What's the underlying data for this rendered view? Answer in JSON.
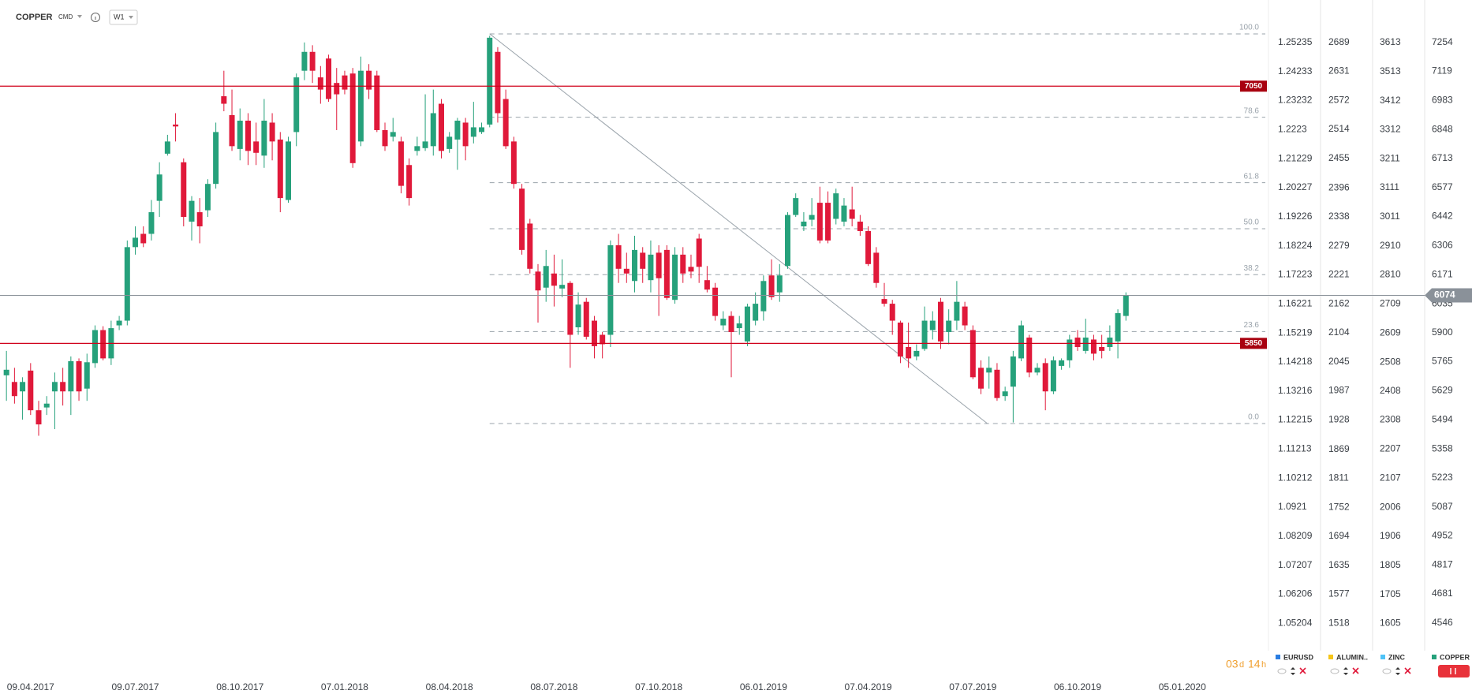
{
  "chart_data": {
    "type": "candlestick",
    "symbol": "COPPER",
    "exchange": "CMD",
    "interval": "W1",
    "up_color": "#26a17b",
    "down_color": "#e0193a",
    "ylim": [
      4328,
      7452
    ],
    "yticks": [
      7254,
      7119,
      6983,
      6848,
      6713,
      6577,
      6442,
      6306,
      6171,
      6035,
      5900,
      5765,
      5629,
      5494,
      5358,
      5223,
      5087,
      4952,
      4817,
      4681,
      4546
    ],
    "xlim": [
      -0.8,
      156.7
    ],
    "xticks": [
      {
        "value": 3,
        "label": "09.04.2017"
      },
      {
        "value": 16,
        "label": "09.07.2017"
      },
      {
        "value": 29,
        "label": "08.10.2017"
      },
      {
        "value": 42,
        "label": "07.01.2018"
      },
      {
        "value": 55,
        "label": "08.04.2018"
      },
      {
        "value": 68,
        "label": "08.07.2018"
      },
      {
        "value": 81,
        "label": "07.10.2018"
      },
      {
        "value": 94,
        "label": "06.01.2019"
      },
      {
        "value": 107,
        "label": "07.04.2019"
      },
      {
        "value": 120,
        "label": "07.07.2019"
      },
      {
        "value": 133,
        "label": "06.10.2019"
      },
      {
        "value": 146,
        "label": "05.01.2020"
      }
    ],
    "ohlc": [
      [
        5701,
        5815,
        5582,
        5727
      ],
      [
        5670,
        5736,
        5569,
        5604
      ],
      [
        5626,
        5692,
        5494,
        5670
      ],
      [
        5723,
        5758,
        5516,
        5538
      ],
      [
        5538,
        5582,
        5419,
        5472
      ],
      [
        5551,
        5604,
        5516,
        5569
      ],
      [
        5626,
        5714,
        5450,
        5670
      ],
      [
        5670,
        5736,
        5560,
        5626
      ],
      [
        5626,
        5789,
        5516,
        5767
      ],
      [
        5767,
        5780,
        5582,
        5626
      ],
      [
        5639,
        5802,
        5582,
        5762
      ],
      [
        5758,
        5934,
        5736,
        5912
      ],
      [
        5912,
        5930,
        5771,
        5780
      ],
      [
        5780,
        5956,
        5749,
        5921
      ],
      [
        5934,
        5978,
        5912,
        5956
      ],
      [
        5956,
        6330,
        5934,
        6299
      ],
      [
        6299,
        6396,
        6264,
        6343
      ],
      [
        6361,
        6396,
        6299,
        6317
      ],
      [
        6361,
        6519,
        6330,
        6462
      ],
      [
        6515,
        6695,
        6440,
        6638
      ],
      [
        6735,
        6823,
        6726,
        6792
      ],
      [
        6871,
        6924,
        6792,
        6862
      ],
      [
        6695,
        6713,
        6396,
        6440
      ],
      [
        6418,
        6537,
        6330,
        6515
      ],
      [
        6462,
        6528,
        6317,
        6396
      ],
      [
        6471,
        6616,
        6440,
        6594
      ],
      [
        6594,
        6880,
        6572,
        6836
      ],
      [
        7003,
        7122,
        6933,
        6968
      ],
      [
        6915,
        7034,
        6748,
        6770
      ],
      [
        6757,
        6946,
        6704,
        6889
      ],
      [
        6889,
        6924,
        6682,
        6748
      ],
      [
        6792,
        6880,
        6682,
        6739
      ],
      [
        6726,
        6990,
        6669,
        6889
      ],
      [
        6880,
        6924,
        6704,
        6792
      ],
      [
        6801,
        6836,
        6462,
        6528
      ],
      [
        6519,
        6814,
        6506,
        6792
      ],
      [
        6836,
        7109,
        6770,
        7091
      ],
      [
        7122,
        7254,
        7078,
        7210
      ],
      [
        7210,
        7241,
        7065,
        7122
      ],
      [
        7091,
        7144,
        6968,
        7034
      ],
      [
        7179,
        7197,
        6977,
        6990
      ],
      [
        7065,
        7135,
        6845,
        7012
      ],
      [
        7100,
        7122,
        7012,
        7034
      ],
      [
        7109,
        7135,
        6669,
        6691
      ],
      [
        6792,
        7188,
        6770,
        7122
      ],
      [
        7122,
        7153,
        6990,
        7034
      ],
      [
        7100,
        7122,
        6836,
        6845
      ],
      [
        6845,
        6880,
        6748,
        6770
      ],
      [
        6814,
        6902,
        6792,
        6836
      ],
      [
        6792,
        6814,
        6550,
        6585
      ],
      [
        6682,
        6713,
        6493,
        6528
      ],
      [
        6748,
        6814,
        6726,
        6770
      ],
      [
        6761,
        7012,
        6748,
        6792
      ],
      [
        6770,
        7034,
        6726,
        6924
      ],
      [
        6968,
        6990,
        6713,
        6748
      ],
      [
        6757,
        6836,
        6739,
        6814
      ],
      [
        6801,
        6902,
        6660,
        6889
      ],
      [
        6880,
        6902,
        6704,
        6770
      ],
      [
        6814,
        6977,
        6783,
        6858
      ],
      [
        6836,
        6880,
        6827,
        6858
      ],
      [
        6871,
        7285,
        6858,
        7276
      ],
      [
        7210,
        7232,
        6880,
        6924
      ],
      [
        6990,
        7034,
        6757,
        6770
      ],
      [
        6792,
        6814,
        6572,
        6594
      ],
      [
        6572,
        6594,
        6264,
        6286
      ],
      [
        6409,
        6431,
        6176,
        6198
      ],
      [
        6185,
        6220,
        5947,
        6097
      ],
      [
        6110,
        6286,
        6044,
        6211
      ],
      [
        6176,
        6264,
        6022,
        6119
      ],
      [
        6106,
        6242,
        6066,
        6123
      ],
      [
        6132,
        6141,
        5736,
        5890
      ],
      [
        5925,
        6088,
        5890,
        6031
      ],
      [
        6044,
        6062,
        5868,
        5881
      ],
      [
        5956,
        5978,
        5780,
        5837
      ],
      [
        5890,
        5903,
        5780,
        5846
      ],
      [
        5890,
        6330,
        5833,
        6308
      ],
      [
        6308,
        6361,
        6132,
        6198
      ],
      [
        6198,
        6273,
        6132,
        6176
      ],
      [
        6141,
        6352,
        6088,
        6286
      ],
      [
        6273,
        6299,
        6132,
        6198
      ],
      [
        6145,
        6330,
        6088,
        6264
      ],
      [
        6273,
        6308,
        5978,
        6154
      ],
      [
        6286,
        6308,
        6053,
        6062
      ],
      [
        6053,
        6299,
        6035,
        6264
      ],
      [
        6264,
        6299,
        6132,
        6176
      ],
      [
        6207,
        6264,
        6154,
        6185
      ],
      [
        6339,
        6361,
        6132,
        6207
      ],
      [
        6145,
        6211,
        6088,
        6101
      ],
      [
        6110,
        6132,
        5956,
        5978
      ],
      [
        5934,
        6000,
        5912,
        5965
      ],
      [
        5978,
        6000,
        5692,
        5903
      ],
      [
        5921,
        5978,
        5890,
        5943
      ],
      [
        5859,
        6035,
        5837,
        6022
      ],
      [
        5956,
        6088,
        5934,
        6035
      ],
      [
        6000,
        6167,
        5956,
        6141
      ],
      [
        6167,
        6242,
        6053,
        6066
      ],
      [
        6088,
        6220,
        6044,
        6167
      ],
      [
        6211,
        6462,
        6198,
        6449
      ],
      [
        6449,
        6550,
        6440,
        6528
      ],
      [
        6396,
        6462,
        6374,
        6418
      ],
      [
        6427,
        6528,
        6396,
        6449
      ],
      [
        6506,
        6581,
        6317,
        6330
      ],
      [
        6506,
        6559,
        6317,
        6330
      ],
      [
        6431,
        6572,
        6405,
        6550
      ],
      [
        6418,
        6528,
        6396,
        6493
      ],
      [
        6475,
        6581,
        6396,
        6431
      ],
      [
        6418,
        6449,
        6352,
        6374
      ],
      [
        6374,
        6396,
        6211,
        6220
      ],
      [
        6273,
        6299,
        6110,
        6132
      ],
      [
        6057,
        6132,
        6022,
        6035
      ],
      [
        6035,
        6053,
        5890,
        5956
      ],
      [
        5947,
        5956,
        5758,
        5789
      ],
      [
        5833,
        5947,
        5736,
        5780
      ],
      [
        5789,
        5846,
        5771,
        5815
      ],
      [
        5824,
        6022,
        5815,
        5956
      ],
      [
        5912,
        6000,
        5868,
        5956
      ],
      [
        6044,
        6062,
        5824,
        5859
      ],
      [
        5903,
        6009,
        5846,
        5956
      ],
      [
        5956,
        6141,
        5912,
        6044
      ],
      [
        6022,
        6044,
        5912,
        5934
      ],
      [
        5912,
        5934,
        5683,
        5692
      ],
      [
        5736,
        5771,
        5613,
        5639
      ],
      [
        5714,
        5789,
        5639,
        5736
      ],
      [
        5727,
        5758,
        5582,
        5595
      ],
      [
        5604,
        5648,
        5582,
        5626
      ],
      [
        5648,
        5815,
        5481,
        5789
      ],
      [
        5780,
        5956,
        5767,
        5934
      ],
      [
        5877,
        5890,
        5692,
        5714
      ],
      [
        5714,
        5758,
        5701,
        5736
      ],
      [
        5758,
        5780,
        5538,
        5626
      ],
      [
        5626,
        5789,
        5613,
        5771
      ],
      [
        5745,
        5780,
        5727,
        5771
      ],
      [
        5771,
        5890,
        5736,
        5868
      ],
      [
        5877,
        5912,
        5815,
        5833
      ],
      [
        5815,
        5965,
        5802,
        5877
      ],
      [
        5868,
        5890,
        5771,
        5802
      ],
      [
        5833,
        5890,
        5780,
        5815
      ],
      [
        5833,
        5934,
        5815,
        5877
      ],
      [
        5859,
        6009,
        5780,
        5991
      ],
      [
        5978,
        6088,
        5956,
        6074
      ]
    ],
    "levels": [
      {
        "value": 7050,
        "color": "#d0021b"
      },
      {
        "value": 5850,
        "color": "#d0021b"
      }
    ],
    "fibonacci": {
      "high": 7294,
      "low": 5476,
      "start": 60,
      "levels": [
        {
          "value": 100,
          "label": "100.0"
        },
        78.6,
        61.8,
        {
          "value": 50,
          "label": "50.0"
        },
        38.2,
        23.6,
        {
          "value": 0,
          "label": "0.0"
        }
      ]
    },
    "trendline": {
      "x": [
        60,
        121.8
      ],
      "y": [
        7294,
        5476
      ]
    },
    "scales": [
      {
        "name": "EURUSD",
        "color": "#2a7de1",
        "ylim": [
          1.03609,
          1.26698
        ],
        "ticks": [
          1.25235,
          1.24233,
          1.23232,
          1.2223,
          {
            "value": 1.21229,
            "label": "1.21229"
          },
          1.20227,
          1.19226,
          1.18224,
          1.17223,
          1.16221,
          1.15219,
          1.14218,
          1.13216,
          1.12215,
          1.11213,
          1.10212,
          1.0921,
          1.08209,
          1.07207,
          1.06206,
          1.05204
        ]
      },
      {
        "name": "ALUMIN..",
        "color": "#f5c518",
        "ylim": [
          1425,
          2774.5
        ],
        "ticks": [
          2689,
          2631,
          2572,
          2514,
          2455,
          2396,
          2338,
          2279,
          2221,
          2162,
          2104,
          2045,
          1987,
          1928,
          1869,
          1811,
          1752,
          1694,
          1635,
          1577,
          1518
        ]
      },
      {
        "name": "ZINC",
        "color": "#4fc3f7",
        "ylim": [
          1445,
          3760
        ],
        "ticks": [
          3613,
          3513,
          3412,
          3312,
          3211,
          3111,
          3011,
          2910,
          2810,
          2709,
          2609,
          2508,
          2408,
          2308,
          2207,
          2107,
          2006,
          1906,
          1805,
          1705,
          1605
        ]
      }
    ],
    "legend_color": "#26a17b",
    "countdown": [
      "03",
      "d",
      "14",
      "h"
    ]
  }
}
